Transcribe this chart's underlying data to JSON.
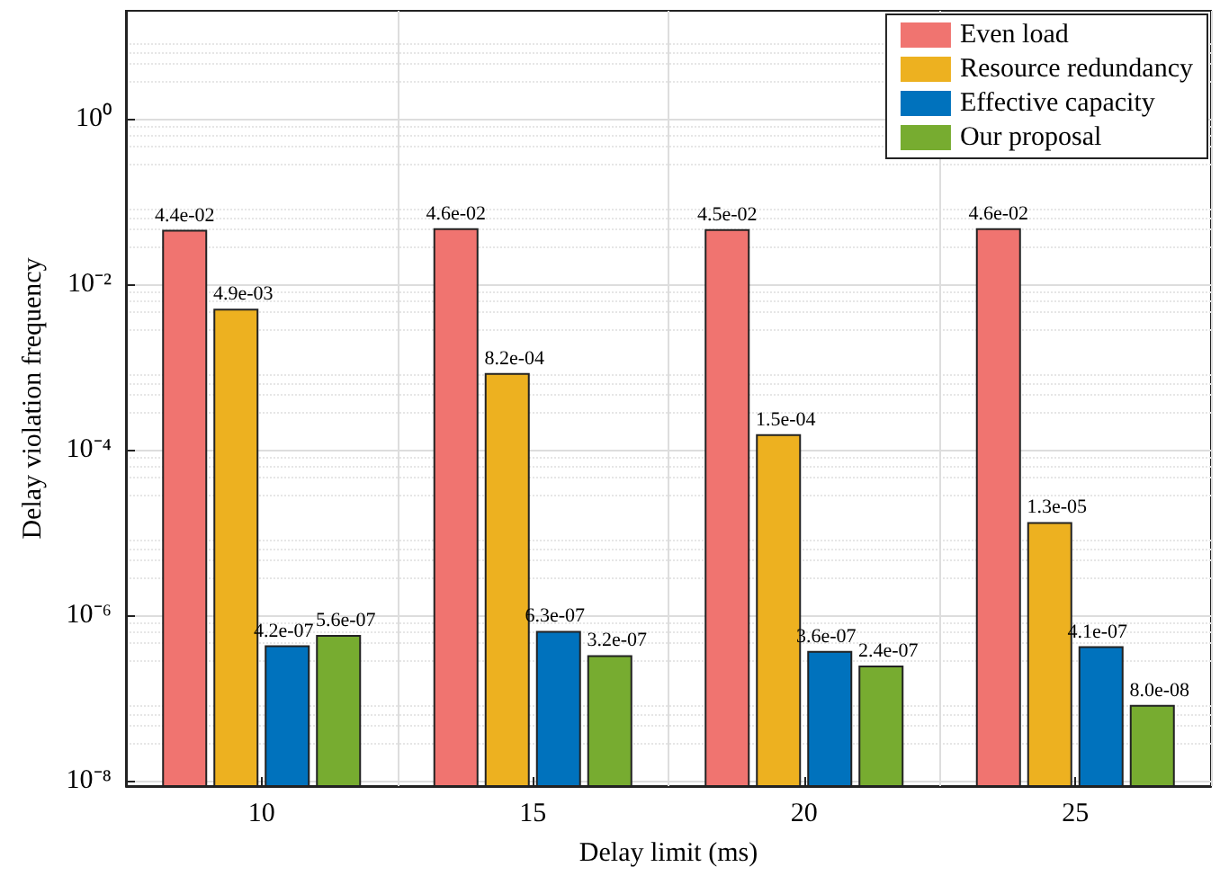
{
  "chart_data": {
    "type": "bar",
    "xlabel": "Delay limit (ms)",
    "ylabel": "Delay violation frequency",
    "categories": [
      "10",
      "15",
      "20",
      "25"
    ],
    "series": [
      {
        "name": "Even load",
        "color": "#f07470",
        "values": [
          0.044,
          0.046,
          0.045,
          0.046
        ],
        "value_labels": [
          "4.4e-02",
          "4.6e-02",
          "4.5e-02",
          "4.6e-02"
        ]
      },
      {
        "name": "Resource redundancy",
        "color": "#edb120",
        "values": [
          0.0049,
          0.00082,
          0.00015,
          1.3e-05
        ],
        "value_labels": [
          "4.9e-03",
          "8.2e-04",
          "1.5e-04",
          "1.3e-05"
        ]
      },
      {
        "name": "Effective capacity",
        "color": "#0072bd",
        "values": [
          4.2e-07,
          6.3e-07,
          3.6e-07,
          4.1e-07
        ],
        "value_labels": [
          "4.2e-07",
          "6.3e-07",
          "3.6e-07",
          "4.1e-07"
        ]
      },
      {
        "name": "Our proposal",
        "color": "#77ac30",
        "values": [
          5.6e-07,
          3.2e-07,
          2.4e-07,
          8e-08
        ],
        "value_labels": [
          "5.6e-07",
          "3.2e-07",
          "2.4e-07",
          "8.0e-08"
        ]
      }
    ],
    "log": true,
    "ylim": [
      8.6e-09,
      20
    ],
    "yticks": [
      {
        "value": 1e-08,
        "label": "10⁻⁸"
      },
      {
        "value": 1e-06,
        "label": "10⁻⁶"
      },
      {
        "value": 0.0001,
        "label": "10⁻⁴"
      },
      {
        "value": 0.01,
        "label": "10⁻²"
      },
      {
        "value": 1,
        "label": "10⁰"
      }
    ],
    "grid": true,
    "legend": "top right"
  }
}
